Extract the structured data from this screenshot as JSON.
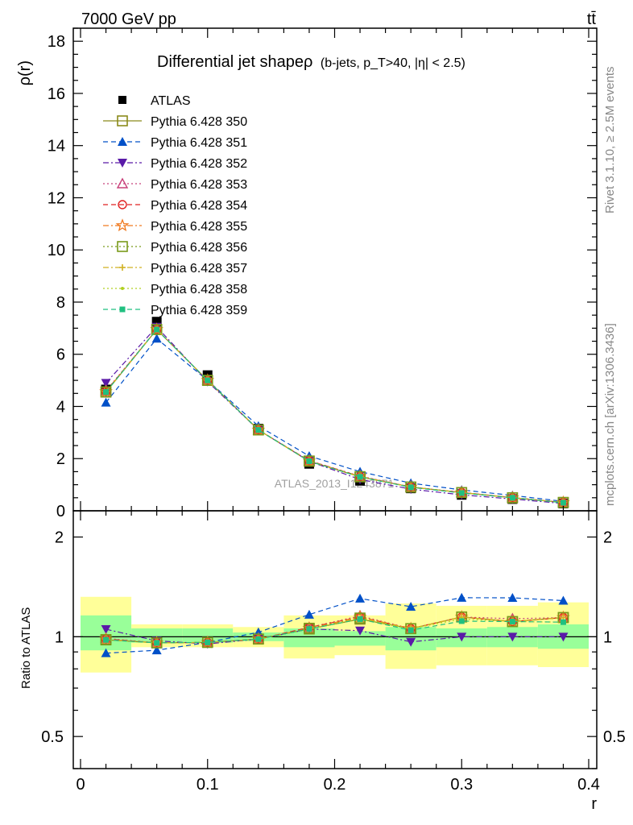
{
  "header": {
    "left": "7000 GeV pp",
    "right": "tt̄"
  },
  "side": {
    "rivet": "Rivet 3.1.10, ≥ 2.5M events",
    "mcplots": "mcplots.cern.ch [arXiv:1306.3436]"
  },
  "watermark": "ATLAS_2013_I1243871",
  "chart_data": {
    "type": "line",
    "title": "Differential jet shapeρ",
    "title_cuts": "(b-jets, p_T>40, |η| < 2.5)",
    "xlabel": "r",
    "ylabel": "ρ(r)",
    "ratio_ylabel": "Ratio to ATLAS",
    "xlim": [
      0,
      0.4
    ],
    "ylim": [
      0,
      18.5
    ],
    "ratio_ylim": [
      0.4,
      2.4
    ],
    "ratio_log": true,
    "x_ticks": [
      0,
      0.1,
      0.2,
      0.3,
      0.4
    ],
    "x_tick_labels": [
      "0",
      "0.1",
      "0.2",
      "0.3",
      "0.4"
    ],
    "y_ticks": [
      0,
      2,
      4,
      6,
      8,
      10,
      12,
      14,
      16,
      18
    ],
    "y_tick_labels": [
      "0",
      "2",
      "4",
      "6",
      "8",
      "10",
      "12",
      "14",
      "16",
      "18"
    ],
    "ratio_ticks": [
      0.5,
      1,
      2
    ],
    "ratio_tick_labels": [
      "0.5",
      "1",
      "2"
    ],
    "legend_position": "top-left",
    "x": [
      0.02,
      0.06,
      0.1,
      0.14,
      0.18,
      0.22,
      0.26,
      0.3,
      0.34,
      0.38
    ],
    "bins": [
      [
        0,
        0.04
      ],
      [
        0.04,
        0.08
      ],
      [
        0.08,
        0.12
      ],
      [
        0.12,
        0.16
      ],
      [
        0.16,
        0.2
      ],
      [
        0.2,
        0.24
      ],
      [
        0.24,
        0.28
      ],
      [
        0.28,
        0.32
      ],
      [
        0.32,
        0.36
      ],
      [
        0.36,
        0.4
      ]
    ],
    "data": {
      "name": "ATLAS",
      "values": [
        4.65,
        7.25,
        5.2,
        3.15,
        1.8,
        1.15,
        0.86,
        0.61,
        0.45,
        0.28
      ],
      "band_inner": [
        [
          0.91,
          1.16
        ],
        [
          0.96,
          1.06
        ],
        [
          0.96,
          1.06
        ],
        [
          0.97,
          1.03
        ],
        [
          0.93,
          1.06
        ],
        [
          0.94,
          1.04
        ],
        [
          0.91,
          1.07
        ],
        [
          0.93,
          1.06
        ],
        [
          0.93,
          1.07
        ],
        [
          0.92,
          1.09
        ]
      ],
      "band_outer": [
        [
          0.78,
          1.32
        ],
        [
          0.93,
          1.09
        ],
        [
          0.93,
          1.09
        ],
        [
          0.93,
          1.07
        ],
        [
          0.86,
          1.16
        ],
        [
          0.88,
          1.16
        ],
        [
          0.8,
          1.26
        ],
        [
          0.82,
          1.24
        ],
        [
          0.82,
          1.24
        ],
        [
          0.81,
          1.27
        ]
      ]
    },
    "series": [
      {
        "name": "Pythia 6.428 350",
        "color": "#8a8a1a",
        "marker": "open-square",
        "dash": "solid",
        "values": [
          4.55,
          6.95,
          5.0,
          3.1,
          1.9,
          1.3,
          0.91,
          0.7,
          0.5,
          0.32
        ]
      },
      {
        "name": "Pythia 6.428 351",
        "color": "#0050c8",
        "marker": "triangle-up",
        "dash": "dashed",
        "values": [
          4.15,
          6.6,
          5.0,
          3.25,
          2.1,
          1.5,
          1.06,
          0.8,
          0.59,
          0.36
        ]
      },
      {
        "name": "Pythia 6.428 352",
        "color": "#5a1aa8",
        "marker": "triangle-down",
        "dash": "dashdot",
        "values": [
          4.9,
          7.05,
          4.95,
          3.1,
          1.9,
          1.2,
          0.83,
          0.61,
          0.45,
          0.28
        ]
      },
      {
        "name": "Pythia 6.428 353",
        "color": "#c8407a",
        "marker": "open-triangle",
        "dash": "dotted",
        "values": [
          4.6,
          6.95,
          5.0,
          3.1,
          1.92,
          1.33,
          0.91,
          0.7,
          0.51,
          0.32
        ]
      },
      {
        "name": "Pythia 6.428 354",
        "color": "#e02020",
        "marker": "open-circle",
        "dash": "dashed",
        "values": [
          4.58,
          6.95,
          5.0,
          3.1,
          1.92,
          1.32,
          0.91,
          0.7,
          0.5,
          0.32
        ]
      },
      {
        "name": "Pythia 6.428 355",
        "color": "#f07a20",
        "marker": "open-star",
        "dash": "dashdot",
        "values": [
          4.57,
          6.95,
          5.0,
          3.1,
          1.91,
          1.32,
          0.91,
          0.7,
          0.5,
          0.32
        ]
      },
      {
        "name": "Pythia 6.428 356",
        "color": "#7a9a1a",
        "marker": "open-square",
        "dash": "dotted",
        "values": [
          4.56,
          6.95,
          5.0,
          3.1,
          1.91,
          1.31,
          0.91,
          0.7,
          0.5,
          0.32
        ]
      },
      {
        "name": "Pythia 6.428 357",
        "color": "#d0b020",
        "marker": "plus",
        "dash": "dashdot",
        "values": [
          4.55,
          6.95,
          5.0,
          3.1,
          1.9,
          1.31,
          0.91,
          0.7,
          0.5,
          0.32
        ]
      },
      {
        "name": "Pythia 6.428 358",
        "color": "#b0d020",
        "marker": "dot",
        "dash": "dotted",
        "values": [
          4.55,
          6.95,
          5.0,
          3.1,
          1.9,
          1.3,
          0.91,
          0.69,
          0.5,
          0.31
        ]
      },
      {
        "name": "Pythia 6.428 359",
        "color": "#20c080",
        "marker": "square",
        "dash": "dashed",
        "values": [
          4.55,
          6.95,
          5.0,
          3.1,
          1.9,
          1.3,
          0.9,
          0.68,
          0.5,
          0.31
        ]
      }
    ]
  }
}
